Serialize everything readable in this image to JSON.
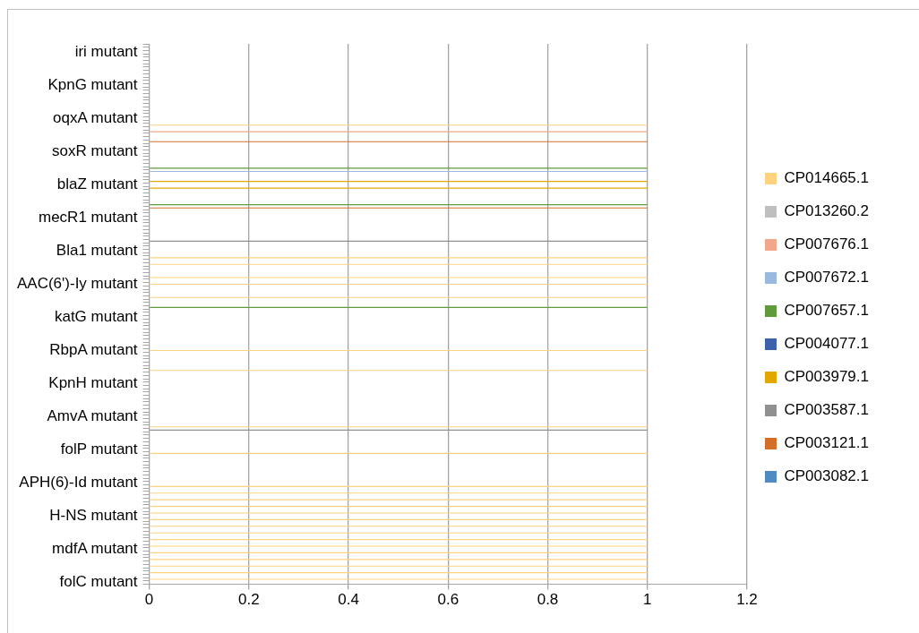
{
  "chart_data": {
    "type": "bar",
    "orientation": "horizontal",
    "grid": "x",
    "legend": "right",
    "xlim": [
      0,
      1.2
    ],
    "xticks": [
      0,
      0.2,
      0.4,
      0.6,
      0.8,
      1,
      1.2
    ],
    "categories": [
      null,
      null,
      "iri mutant",
      null,
      null,
      null,
      null,
      null,
      null,
      null,
      null,
      null,
      "KpnG mutant",
      null,
      null,
      null,
      null,
      null,
      null,
      null,
      null,
      null,
      "oqxA mutant",
      null,
      null,
      null,
      null,
      null,
      null,
      null,
      null,
      null,
      "soxR mutant",
      null,
      null,
      null,
      null,
      null,
      null,
      null,
      null,
      null,
      "blaZ mutant",
      null,
      null,
      null,
      null,
      null,
      null,
      null,
      null,
      null,
      "mecR1 mutant",
      null,
      null,
      null,
      null,
      null,
      null,
      null,
      null,
      null,
      "Bla1 mutant",
      null,
      null,
      null,
      null,
      null,
      null,
      null,
      null,
      null,
      "AAC(6')-Iy mutant",
      null,
      null,
      null,
      null,
      null,
      null,
      null,
      null,
      null,
      "katG mutant",
      null,
      null,
      null,
      null,
      null,
      null,
      null,
      null,
      null,
      "RbpA mutant",
      null,
      null,
      null,
      null,
      null,
      null,
      null,
      null,
      null,
      "KpnH mutant",
      null,
      null,
      null,
      null,
      null,
      null,
      null,
      null,
      null,
      "AmvA mutant",
      null,
      null,
      null,
      null,
      null,
      null,
      null,
      null,
      null,
      "folP mutant",
      null,
      null,
      null,
      null,
      null,
      null,
      null,
      null,
      null,
      "APH(6)-Id mutant",
      null,
      null,
      null,
      null,
      null,
      null,
      null,
      null,
      null,
      "H-NS mutant",
      null,
      null,
      null,
      null,
      null,
      null,
      null,
      null,
      null,
      "mdfA mutant",
      null,
      null,
      null,
      null,
      null,
      null,
      null,
      null,
      null,
      "folC mutant"
    ],
    "series": [
      {
        "name": "CP014665.1",
        "color": "#ffd27f",
        "values": [
          null,
          null,
          null,
          null,
          null,
          null,
          null,
          null,
          null,
          null,
          null,
          null,
          null,
          null,
          null,
          null,
          null,
          null,
          null,
          null,
          null,
          null,
          null,
          null,
          1,
          null,
          null,
          null,
          null,
          null,
          null,
          null,
          null,
          null,
          null,
          null,
          null,
          null,
          null,
          null,
          null,
          null,
          null,
          null,
          null,
          null,
          null,
          null,
          null,
          null,
          null,
          null,
          null,
          null,
          null,
          null,
          null,
          null,
          null,
          null,
          null,
          null,
          null,
          null,
          1,
          null,
          1,
          null,
          null,
          null,
          1,
          null,
          1,
          null,
          null,
          null,
          1,
          null,
          null,
          null,
          null,
          null,
          null,
          null,
          null,
          null,
          null,
          null,
          null,
          null,
          null,
          null,
          1,
          null,
          null,
          null,
          null,
          null,
          1,
          null,
          null,
          null,
          null,
          null,
          null,
          null,
          null,
          null,
          null,
          null,
          null,
          null,
          null,
          null,
          null,
          1,
          null,
          null,
          null,
          null,
          null,
          null,
          null,
          1,
          null,
          null,
          null,
          null,
          null,
          null,
          null,
          null,
          null,
          1,
          null,
          1,
          null,
          1,
          null,
          1,
          null,
          1,
          null,
          1,
          null,
          1,
          null,
          1,
          null,
          1,
          null,
          1,
          null,
          1,
          null,
          1,
          null,
          1,
          null,
          1,
          null,
          1,
          null
        ]
      },
      {
        "name": "CP013260.2",
        "color": "#bfbfbf",
        "values": [
          null,
          null,
          null,
          null,
          null,
          null,
          null,
          null,
          null,
          null,
          null,
          null,
          null,
          null,
          null,
          null,
          null,
          null,
          null,
          null,
          null,
          null,
          null,
          null,
          null,
          null,
          null,
          null,
          null,
          null,
          null,
          null,
          null,
          null,
          null,
          null,
          null,
          null,
          null,
          null,
          null,
          null,
          null,
          null,
          null,
          null,
          null,
          null,
          null,
          null,
          null,
          null,
          null,
          null,
          null,
          null,
          null,
          null,
          null,
          null,
          null,
          null,
          null,
          null,
          null,
          null,
          null,
          null,
          null,
          null,
          null,
          null,
          null,
          null,
          null,
          null,
          null,
          null,
          null,
          null,
          null,
          null,
          null,
          null,
          null,
          null,
          null,
          null,
          null,
          null,
          null,
          null,
          null,
          null,
          null,
          null,
          null,
          null,
          null,
          null,
          null,
          null,
          null,
          null,
          null,
          null,
          null,
          null,
          null,
          null,
          null,
          null,
          null,
          null,
          null,
          null,
          null,
          null,
          null,
          null,
          null,
          null,
          null,
          null,
          null,
          null,
          null,
          null,
          null,
          null,
          null,
          null,
          null,
          null,
          null,
          null,
          null,
          null,
          null,
          null,
          null,
          null,
          null,
          null,
          null,
          null,
          null,
          null,
          null,
          null,
          null,
          null,
          null,
          null,
          null,
          null,
          null,
          null,
          null,
          null,
          null,
          null,
          null
        ]
      },
      {
        "name": "CP007676.1",
        "color": "#f1a78a",
        "values": [
          null,
          null,
          null,
          null,
          null,
          null,
          null,
          null,
          null,
          null,
          null,
          null,
          null,
          null,
          null,
          null,
          null,
          null,
          null,
          null,
          null,
          null,
          null,
          null,
          null,
          null,
          1,
          null,
          null,
          null,
          null,
          null,
          null,
          null,
          null,
          null,
          null,
          null,
          null,
          null,
          null,
          null,
          null,
          null,
          null,
          null,
          null,
          null,
          null,
          null,
          null,
          null,
          null,
          null,
          null,
          null,
          null,
          null,
          null,
          null,
          null,
          null,
          null,
          null,
          null,
          null,
          null,
          null,
          null,
          null,
          null,
          null,
          null,
          null,
          null,
          null,
          null,
          null,
          null,
          null,
          null,
          null,
          null,
          null,
          null,
          null,
          null,
          null,
          null,
          null,
          null,
          null,
          null,
          null,
          null,
          null,
          null,
          null,
          null,
          null,
          null,
          null,
          null,
          null,
          null,
          null,
          null,
          null,
          null,
          null,
          null,
          null,
          null,
          null,
          null,
          null,
          null,
          null,
          null,
          null,
          null,
          null,
          null,
          null,
          null,
          null,
          null,
          null,
          null,
          null,
          null,
          null,
          null,
          null,
          null,
          null,
          null,
          null,
          null,
          null,
          null,
          null,
          null,
          null,
          null,
          null,
          null,
          null,
          null,
          null,
          null,
          null,
          null,
          null,
          null,
          null,
          null,
          null,
          null,
          null,
          null,
          null,
          null
        ]
      },
      {
        "name": "CP007672.1",
        "color": "#9ab9df",
        "values": [
          null,
          null,
          null,
          null,
          null,
          null,
          null,
          null,
          null,
          null,
          null,
          null,
          null,
          null,
          null,
          null,
          null,
          null,
          null,
          null,
          null,
          null,
          null,
          null,
          null,
          null,
          null,
          null,
          null,
          null,
          null,
          null,
          null,
          null,
          null,
          null,
          null,
          null,
          1,
          null,
          null,
          null,
          null,
          null,
          null,
          null,
          null,
          null,
          null,
          null,
          null,
          null,
          null,
          null,
          null,
          null,
          null,
          null,
          null,
          null,
          null,
          null,
          null,
          null,
          null,
          null,
          null,
          null,
          null,
          null,
          null,
          null,
          null,
          null,
          null,
          null,
          null,
          null,
          null,
          null,
          null,
          null,
          null,
          null,
          null,
          null,
          null,
          null,
          null,
          null,
          null,
          null,
          null,
          null,
          null,
          null,
          null,
          null,
          null,
          null,
          null,
          null,
          null,
          null,
          null,
          null,
          null,
          null,
          null,
          null,
          null,
          null,
          null,
          null,
          null,
          null,
          null,
          null,
          null,
          null,
          null,
          null,
          null,
          null,
          null,
          null,
          null,
          null,
          null,
          null,
          null,
          null,
          null,
          null,
          null,
          null,
          null,
          null,
          null,
          null,
          null,
          null,
          null,
          null,
          null,
          null,
          null,
          null,
          null,
          null,
          null,
          null,
          null,
          null,
          null,
          null,
          null,
          null,
          null,
          null,
          null,
          null,
          null
        ]
      },
      {
        "name": "CP007657.1",
        "color": "#5f9b3c",
        "values": [
          null,
          null,
          null,
          null,
          null,
          null,
          null,
          null,
          null,
          null,
          null,
          null,
          null,
          null,
          null,
          null,
          null,
          null,
          null,
          null,
          null,
          null,
          null,
          null,
          null,
          null,
          null,
          null,
          null,
          null,
          null,
          null,
          null,
          null,
          null,
          null,
          null,
          1,
          null,
          null,
          null,
          null,
          null,
          null,
          null,
          null,
          null,
          null,
          1,
          null,
          null,
          null,
          null,
          null,
          null,
          null,
          null,
          null,
          null,
          null,
          null,
          null,
          null,
          null,
          null,
          null,
          null,
          null,
          null,
          null,
          null,
          null,
          null,
          null,
          null,
          null,
          null,
          null,
          null,
          1,
          null,
          null,
          null,
          null,
          null,
          null,
          null,
          null,
          null,
          null,
          null,
          null,
          null,
          null,
          null,
          null,
          null,
          null,
          null,
          null,
          null,
          null,
          null,
          null,
          null,
          null,
          null,
          null,
          null,
          null,
          null,
          null,
          null,
          null,
          null,
          null,
          null,
          null,
          null,
          null,
          null,
          null,
          null,
          null,
          null,
          null,
          null,
          null,
          null,
          null,
          null,
          null,
          null,
          null,
          null,
          null,
          null,
          null,
          null,
          null,
          null,
          null,
          null,
          null,
          null,
          null,
          null,
          null,
          null,
          null,
          null,
          null,
          null,
          null,
          null,
          null,
          null,
          null,
          null,
          null,
          null,
          null,
          null
        ]
      },
      {
        "name": "CP004077.1",
        "color": "#3c62ab",
        "values": [
          null,
          null,
          null,
          null,
          null,
          null,
          null,
          null,
          null,
          null,
          null,
          null,
          null,
          null,
          null,
          null,
          null,
          null,
          null,
          null,
          null,
          null,
          null,
          null,
          null,
          null,
          null,
          null,
          null,
          null,
          null,
          null,
          null,
          null,
          null,
          null,
          null,
          null,
          null,
          null,
          null,
          null,
          null,
          null,
          null,
          null,
          null,
          null,
          null,
          null,
          null,
          null,
          null,
          null,
          null,
          null,
          null,
          null,
          null,
          null,
          null,
          null,
          null,
          null,
          null,
          null,
          null,
          null,
          null,
          null,
          null,
          null,
          null,
          null,
          null,
          null,
          null,
          null,
          null,
          null,
          null,
          null,
          null,
          null,
          null,
          null,
          null,
          null,
          null,
          null,
          null,
          null,
          null,
          null,
          null,
          null,
          null,
          null,
          null,
          null,
          null,
          null,
          null,
          null,
          null,
          null,
          null,
          null,
          null,
          null,
          null,
          null,
          null,
          null,
          null,
          null,
          null,
          null,
          null,
          null,
          null,
          null,
          null,
          null,
          null,
          null,
          null,
          null,
          null,
          null,
          null,
          null,
          null,
          null,
          null,
          null,
          null,
          null,
          null,
          null,
          null,
          null,
          null,
          null,
          null,
          null,
          null,
          null,
          null,
          null,
          null,
          null,
          null,
          null,
          null,
          null,
          null,
          null,
          null,
          null,
          null,
          null,
          null
        ]
      },
      {
        "name": "CP003979.1",
        "color": "#e3a800",
        "values": [
          null,
          null,
          null,
          null,
          null,
          null,
          null,
          null,
          null,
          null,
          null,
          null,
          null,
          null,
          null,
          null,
          null,
          null,
          null,
          null,
          null,
          null,
          null,
          null,
          null,
          null,
          null,
          null,
          null,
          null,
          null,
          null,
          null,
          null,
          null,
          null,
          null,
          null,
          null,
          null,
          null,
          1,
          null,
          1,
          null,
          null,
          null,
          null,
          null,
          null,
          null,
          null,
          null,
          null,
          null,
          null,
          null,
          null,
          null,
          null,
          null,
          null,
          null,
          null,
          null,
          null,
          null,
          null,
          null,
          null,
          null,
          null,
          null,
          null,
          null,
          null,
          null,
          null,
          null,
          null,
          null,
          null,
          null,
          null,
          null,
          null,
          null,
          null,
          null,
          null,
          null,
          null,
          null,
          null,
          null,
          null,
          null,
          null,
          null,
          null,
          null,
          null,
          null,
          null,
          null,
          null,
          null,
          null,
          null,
          null,
          null,
          null,
          null,
          null,
          null,
          null,
          null,
          null,
          null,
          null,
          null,
          null,
          null,
          null,
          null,
          null,
          null,
          null,
          null,
          null,
          null,
          null,
          null,
          null,
          null,
          null,
          null,
          null,
          null,
          null,
          null,
          null,
          null,
          null,
          null,
          null,
          null,
          null,
          null,
          null,
          null,
          null,
          null,
          null,
          null,
          null,
          null,
          null,
          null,
          null,
          null,
          null,
          null
        ]
      },
      {
        "name": "CP003587.1",
        "color": "#909090",
        "values": [
          null,
          null,
          null,
          null,
          null,
          null,
          null,
          null,
          null,
          null,
          null,
          null,
          null,
          null,
          null,
          null,
          null,
          null,
          null,
          null,
          null,
          null,
          null,
          null,
          null,
          null,
          null,
          null,
          null,
          null,
          null,
          null,
          null,
          null,
          null,
          null,
          null,
          null,
          null,
          null,
          null,
          null,
          null,
          null,
          null,
          null,
          null,
          null,
          null,
          null,
          null,
          null,
          null,
          null,
          null,
          null,
          null,
          null,
          null,
          1,
          null,
          null,
          null,
          null,
          null,
          null,
          null,
          null,
          null,
          null,
          null,
          null,
          null,
          null,
          null,
          null,
          null,
          null,
          null,
          null,
          null,
          null,
          null,
          null,
          null,
          null,
          null,
          null,
          null,
          null,
          null,
          null,
          null,
          null,
          null,
          null,
          null,
          null,
          null,
          null,
          null,
          null,
          null,
          null,
          null,
          null,
          null,
          null,
          null,
          null,
          null,
          null,
          null,
          null,
          null,
          null,
          1,
          null,
          null,
          null,
          null,
          null,
          null,
          null,
          null,
          null,
          null,
          null,
          null,
          null,
          null,
          null,
          null,
          null,
          null,
          null,
          null,
          null,
          null,
          null,
          null,
          null,
          null,
          null,
          null,
          null,
          null,
          null,
          null,
          null,
          null,
          null,
          null,
          null,
          null,
          null,
          null,
          null,
          null,
          null,
          null,
          null,
          null
        ]
      },
      {
        "name": "CP003121.1",
        "color": "#d46f2a",
        "values": [
          null,
          null,
          null,
          null,
          null,
          null,
          null,
          null,
          null,
          null,
          null,
          null,
          null,
          null,
          null,
          null,
          null,
          null,
          null,
          null,
          null,
          null,
          null,
          null,
          null,
          null,
          null,
          null,
          null,
          1,
          null,
          null,
          null,
          null,
          null,
          null,
          null,
          null,
          null,
          null,
          null,
          null,
          null,
          null,
          null,
          null,
          null,
          null,
          null,
          1,
          null,
          null,
          null,
          null,
          null,
          null,
          null,
          null,
          null,
          null,
          null,
          null,
          null,
          null,
          null,
          null,
          null,
          null,
          null,
          null,
          null,
          null,
          null,
          null,
          null,
          null,
          null,
          null,
          null,
          null,
          null,
          null,
          null,
          null,
          null,
          null,
          null,
          null,
          null,
          null,
          null,
          null,
          null,
          null,
          null,
          null,
          null,
          null,
          null,
          null,
          null,
          null,
          null,
          null,
          null,
          null,
          null,
          null,
          null,
          null,
          null,
          null,
          null,
          null,
          null,
          null,
          null,
          null,
          null,
          null,
          null,
          null,
          null,
          null,
          null,
          null,
          null,
          null,
          null,
          null,
          null,
          null,
          null,
          null,
          null,
          null,
          null,
          null,
          null,
          null,
          null,
          null,
          null,
          null,
          null,
          null,
          null,
          null,
          null,
          null,
          null,
          null,
          null,
          null,
          null,
          null,
          null,
          null,
          null,
          null,
          null,
          null,
          null
        ]
      },
      {
        "name": "CP003082.1",
        "color": "#4e8bc0",
        "values": [
          null,
          null,
          null,
          null,
          null,
          null,
          null,
          null,
          null,
          null,
          null,
          null,
          null,
          null,
          null,
          null,
          null,
          null,
          null,
          null,
          null,
          null,
          null,
          null,
          null,
          null,
          null,
          null,
          null,
          null,
          null,
          null,
          null,
          null,
          null,
          null,
          null,
          null,
          null,
          null,
          null,
          null,
          null,
          null,
          null,
          null,
          null,
          null,
          null,
          null,
          null,
          null,
          null,
          null,
          null,
          null,
          null,
          null,
          null,
          null,
          null,
          null,
          null,
          null,
          null,
          null,
          null,
          null,
          null,
          null,
          null,
          null,
          null,
          null,
          null,
          null,
          null,
          null,
          null,
          null,
          null,
          null,
          null,
          null,
          null,
          null,
          null,
          null,
          null,
          null,
          null,
          null,
          null,
          null,
          null,
          null,
          null,
          null,
          null,
          null,
          null,
          null,
          null,
          null,
          null,
          null,
          null,
          null,
          null,
          null,
          null,
          null,
          null,
          null,
          null,
          null,
          null,
          null,
          null,
          null,
          null,
          null,
          null,
          null,
          null,
          null,
          null,
          null,
          null,
          null,
          null,
          null,
          null,
          null,
          null,
          null,
          null,
          null,
          null,
          null,
          null,
          null,
          null,
          null,
          null,
          null,
          null,
          null,
          null,
          null,
          null,
          null,
          null,
          null,
          null,
          null,
          null,
          null,
          null,
          null,
          null,
          null,
          null
        ]
      }
    ]
  }
}
